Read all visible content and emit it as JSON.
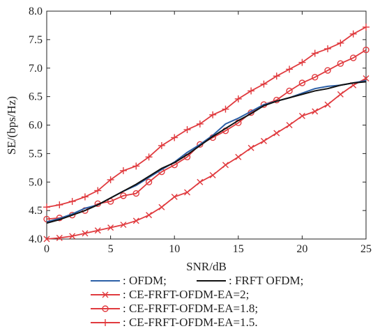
{
  "chart_data": {
    "type": "line",
    "title": "",
    "xlabel": "SNR/dB",
    "ylabel": "SE/(bps/Hz)",
    "xlim": [
      0,
      25
    ],
    "ylim": [
      4.0,
      8.0
    ],
    "xticks": [
      "0",
      "5",
      "10",
      "15",
      "20",
      "25"
    ],
    "yticks": [
      "4.0",
      "4.5",
      "5.0",
      "5.5",
      "6.0",
      "6.5",
      "7.0",
      "7.5",
      "8.0"
    ],
    "grid": false,
    "legend_position": "bottom",
    "x": [
      0,
      1,
      2,
      3,
      4,
      5,
      6,
      7,
      8,
      9,
      10,
      11,
      12,
      13,
      14,
      15,
      16,
      17,
      18,
      19,
      20,
      21,
      22,
      23,
      24,
      25
    ],
    "series": [
      {
        "name": ": OFDM;",
        "color": "#2b5fa6",
        "marker": "none",
        "values": [
          4.3,
          4.36,
          4.44,
          4.54,
          4.6,
          4.72,
          4.84,
          4.94,
          5.08,
          5.22,
          5.35,
          5.52,
          5.66,
          5.82,
          6.02,
          6.12,
          6.24,
          6.36,
          6.42,
          6.48,
          6.56,
          6.64,
          6.68,
          6.7,
          6.74,
          6.78
        ]
      },
      {
        "name": ": FRFT OFDM;",
        "color": "#111111",
        "marker": "none",
        "values": [
          4.28,
          4.34,
          4.42,
          4.5,
          4.6,
          4.72,
          4.84,
          4.96,
          5.1,
          5.24,
          5.34,
          5.48,
          5.64,
          5.8,
          5.94,
          6.08,
          6.2,
          6.34,
          6.42,
          6.48,
          6.54,
          6.6,
          6.64,
          6.7,
          6.74,
          6.76
        ]
      },
      {
        "name": ": CE-FRFT-OFDM-EA=2;",
        "color": "#e03a3e",
        "marker": "x",
        "values": [
          4.0,
          4.02,
          4.05,
          4.1,
          4.15,
          4.2,
          4.25,
          4.32,
          4.42,
          4.56,
          4.74,
          4.82,
          5.0,
          5.12,
          5.3,
          5.44,
          5.6,
          5.72,
          5.86,
          6.0,
          6.16,
          6.24,
          6.36,
          6.54,
          6.7,
          6.82
        ]
      },
      {
        "name": ": CE-FRFT-OFDM-EA=1.8;",
        "color": "#e03a3e",
        "marker": "o",
        "values": [
          4.35,
          4.37,
          4.42,
          4.5,
          4.62,
          4.66,
          4.76,
          4.8,
          5.0,
          5.18,
          5.3,
          5.44,
          5.66,
          5.78,
          5.9,
          6.04,
          6.22,
          6.36,
          6.44,
          6.6,
          6.74,
          6.84,
          6.96,
          7.08,
          7.18,
          7.32
        ]
      },
      {
        "name": ": CE-FRFT-OFDM-EA=1.5.",
        "color": "#e03a3e",
        "marker": "+",
        "values": [
          4.56,
          4.6,
          4.66,
          4.74,
          4.85,
          5.04,
          5.2,
          5.28,
          5.44,
          5.64,
          5.78,
          5.92,
          6.02,
          6.18,
          6.28,
          6.46,
          6.6,
          6.72,
          6.86,
          6.98,
          7.1,
          7.26,
          7.34,
          7.44,
          7.6,
          7.72
        ]
      }
    ]
  }
}
